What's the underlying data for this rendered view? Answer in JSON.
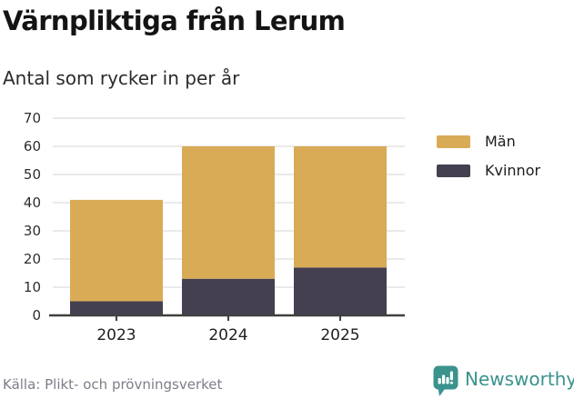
{
  "chart_data": {
    "type": "bar",
    "stacked": true,
    "title": "Värnpliktiga från Lerum",
    "subtitle": "Antal som rycker in per år",
    "categories": [
      "2023",
      "2024",
      "2025"
    ],
    "series": [
      {
        "name": "Män",
        "color": "#d9ab57",
        "values": [
          36,
          47,
          43
        ]
      },
      {
        "name": "Kvinnor",
        "color": "#454050",
        "values": [
          5,
          13,
          17
        ]
      }
    ],
    "stack_totals": [
      41,
      60,
      60
    ],
    "ylim": [
      0,
      70
    ],
    "yticks": [
      0,
      10,
      20,
      30,
      40,
      50,
      60,
      70
    ],
    "grid": true,
    "legend_position": "right",
    "grid_color": "#e3e3e3",
    "axis_color": "#404040",
    "tick_label_color": "#2e2e2e",
    "xlabel_color": "#1f1f1f",
    "xlabel": "",
    "ylabel": ""
  },
  "footer": {
    "source": "Källa: Plikt- och prövningsverket",
    "brand": "Newsworthy",
    "brand_color": "#3a938d"
  }
}
